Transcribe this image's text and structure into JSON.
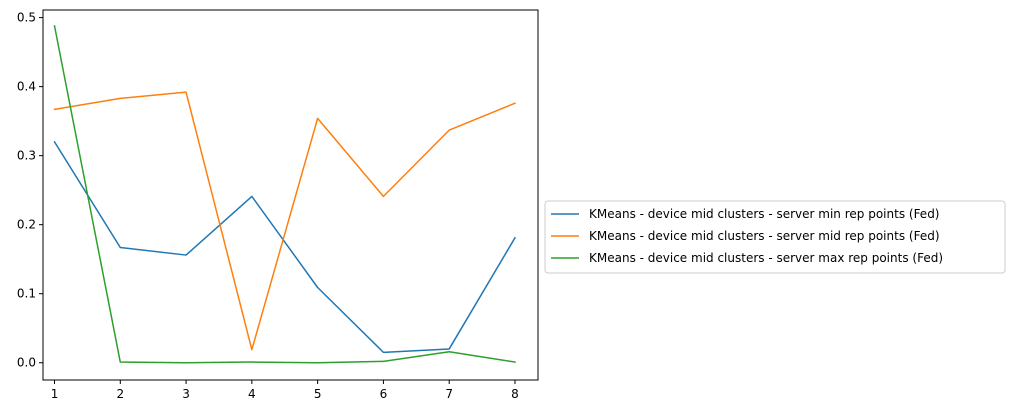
{
  "chart_data": {
    "type": "line",
    "title": "",
    "xlabel": "",
    "ylabel": "",
    "x": [
      1,
      2,
      3,
      4,
      5,
      6,
      7,
      8
    ],
    "xlim": [
      0.825,
      8.35
    ],
    "ylim": [
      -0.025,
      0.511
    ],
    "x_ticks": [
      1,
      2,
      3,
      4,
      5,
      6,
      7,
      8
    ],
    "x_tick_labels": [
      "1",
      "2",
      "3",
      "4",
      "5",
      "6",
      "7",
      "8"
    ],
    "y_ticks": [
      0.0,
      0.1,
      0.2,
      0.3,
      0.4,
      0.5
    ],
    "y_tick_labels": [
      "0.0",
      "0.1",
      "0.2",
      "0.3",
      "0.4",
      "0.5"
    ],
    "grid": false,
    "legend_position": "outside-right",
    "series": [
      {
        "name": "KMeans - device mid clusters - server min rep points (Fed)",
        "color": "#1f77b4",
        "values": [
          0.32,
          0.167,
          0.156,
          0.241,
          0.109,
          0.015,
          0.02,
          0.181
        ]
      },
      {
        "name": "KMeans - device mid clusters - server mid rep points (Fed)",
        "color": "#ff7f0e",
        "values": [
          0.367,
          0.383,
          0.392,
          0.019,
          0.354,
          0.241,
          0.337,
          0.376
        ]
      },
      {
        "name": "KMeans - device mid clusters - server max rep points (Fed)",
        "color": "#2ca02c",
        "values": [
          0.488,
          0.001,
          0.0,
          0.001,
          0.0,
          0.002,
          0.016,
          0.001
        ]
      }
    ]
  }
}
